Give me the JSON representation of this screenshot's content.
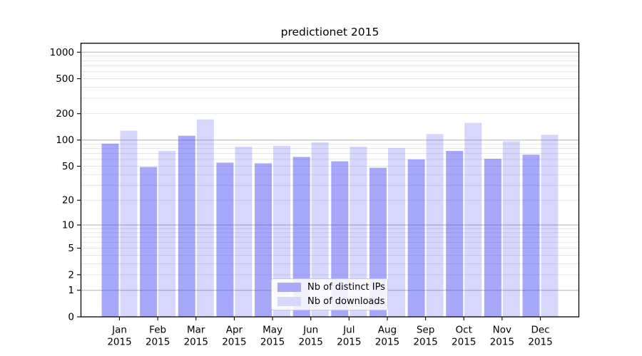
{
  "figure": {
    "background": "#ffffff"
  },
  "chart_data": {
    "type": "bar",
    "title": "predictionet 2015",
    "categories": [
      "Jan",
      "Feb",
      "Mar",
      "Apr",
      "May",
      "Jun",
      "Jul",
      "Aug",
      "Sep",
      "Oct",
      "Nov",
      "Dec"
    ],
    "year_label": "2015",
    "series": [
      {
        "name": "Nb of distinct IPs",
        "values": [
          91,
          49,
          112,
          55,
          54,
          64,
          57,
          48,
          60,
          75,
          61,
          68
        ]
      },
      {
        "name": "Nb of downloads",
        "values": [
          128,
          75,
          172,
          84,
          86,
          94,
          84,
          81,
          117,
          157,
          97,
          115
        ]
      }
    ],
    "xlabel": "",
    "ylabel": "",
    "yscale": "symlog-ln(1+v)",
    "yticks": [
      0,
      1,
      2,
      5,
      10,
      20,
      50,
      100,
      200,
      500,
      1000
    ],
    "ylim": [
      0,
      1265
    ],
    "grid": "horizontal-major-and-minor",
    "legend_position": "lower center",
    "colors": {
      "bar_ips": "rgba(66,66,245,0.46)",
      "bar_downloads": "rgba(66,66,245,0.21)",
      "swatch_ips": "#a9a9f9",
      "swatch_downloads": "#d8d8fc",
      "major_grid": "#b0b0b0",
      "minor_grid": "#e3e3e3",
      "axis_frame": "#000000",
      "tick_text": "#000000"
    }
  }
}
